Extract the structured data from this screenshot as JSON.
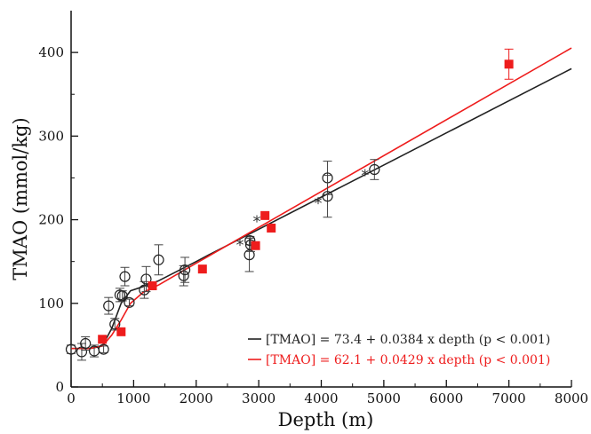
{
  "chart_data": {
    "type": "scatter",
    "xlabel": "Depth (m)",
    "ylabel": "TMAO (mmol/kg)",
    "xlim": [
      0,
      8000
    ],
    "ylim": [
      0,
      450
    ],
    "x_ticks": [
      0,
      1000,
      2000,
      3000,
      4000,
      5000,
      6000,
      7000,
      8000
    ],
    "y_ticks": [
      0,
      100,
      200,
      300,
      400
    ],
    "grid": false,
    "legend_position": "bottom-right",
    "colors": {
      "black_series": "#222222",
      "red_series": "#ee1c1c"
    },
    "series": [
      {
        "marker": "open-circle",
        "color": "#222222",
        "points": [
          {
            "x": 0,
            "y": 45,
            "err": 5
          },
          {
            "x": 170,
            "y": 42,
            "err": 10
          },
          {
            "x": 230,
            "y": 52,
            "err": 8
          },
          {
            "x": 370,
            "y": 43,
            "err": 7
          },
          {
            "x": 520,
            "y": 45,
            "err": 4
          },
          {
            "x": 600,
            "y": 97,
            "err": 10
          },
          {
            "x": 700,
            "y": 75,
            "err": 7
          },
          {
            "x": 780,
            "y": 110,
            "err": 8
          },
          {
            "x": 820,
            "y": 109,
            "err": 6
          },
          {
            "x": 860,
            "y": 132,
            "err": 11
          },
          {
            "x": 930,
            "y": 101,
            "err": 4
          },
          {
            "x": 1170,
            "y": 116,
            "err": 10
          },
          {
            "x": 1200,
            "y": 129,
            "err": 15
          },
          {
            "x": 1400,
            "y": 152,
            "err": 18
          },
          {
            "x": 1800,
            "y": 133,
            "err": 12
          },
          {
            "x": 1820,
            "y": 140,
            "err": 15
          },
          {
            "x": 2850,
            "y": 158,
            "err": 20
          },
          {
            "x": 2860,
            "y": 175,
            "err": 5
          },
          {
            "x": 2870,
            "y": 170,
            "err": 8
          },
          {
            "x": 4100,
            "y": 250,
            "err": 20
          },
          {
            "x": 4100,
            "y": 228,
            "err": 25
          },
          {
            "x": 4850,
            "y": 260,
            "err": 12
          }
        ]
      },
      {
        "marker": "filled-square",
        "color": "#ee1c1c",
        "points": [
          {
            "x": 500,
            "y": 57
          },
          {
            "x": 800,
            "y": 66
          },
          {
            "x": 1300,
            "y": 121
          },
          {
            "x": 2100,
            "y": 141
          },
          {
            "x": 2950,
            "y": 169
          },
          {
            "x": 3100,
            "y": 205
          },
          {
            "x": 3200,
            "y": 190
          },
          {
            "x": 7000,
            "y": 386,
            "err": 18
          }
        ]
      },
      {
        "marker": "asterisk",
        "color": "#333333",
        "points": [
          {
            "x": 2700,
            "y": 172
          },
          {
            "x": 2970,
            "y": 200
          },
          {
            "x": 3950,
            "y": 222
          },
          {
            "x": 4700,
            "y": 255
          }
        ]
      }
    ],
    "fits": [
      {
        "label": "[TMAO] = 73.4 + 0.0384 x depth (p < 0.001)",
        "color": "#222222",
        "intercept": 73.4,
        "slope": 0.0384,
        "shallow_curve": [
          [
            0,
            46
          ],
          [
            300,
            46
          ],
          [
            500,
            49
          ],
          [
            650,
            70
          ],
          [
            800,
            100
          ],
          [
            950,
            115
          ],
          [
            1150,
            120
          ],
          [
            1400,
            127
          ],
          [
            2000,
            150
          ]
        ]
      },
      {
        "label": "[TMAO] = 62.1 + 0.0429 x depth (p < 0.001)",
        "color": "#ee1c1c",
        "intercept": 62.1,
        "slope": 0.0429,
        "shallow_curve": [
          [
            0,
            46
          ],
          [
            300,
            46
          ],
          [
            500,
            49
          ],
          [
            650,
            62
          ],
          [
            800,
            80
          ],
          [
            950,
            100
          ],
          [
            1150,
            113
          ],
          [
            1400,
            122
          ],
          [
            2000,
            148
          ]
        ]
      }
    ]
  }
}
